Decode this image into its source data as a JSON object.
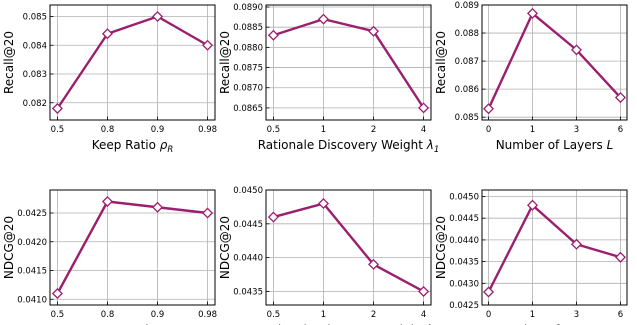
{
  "figure": {
    "line_color": "#9b1f6e",
    "grid_color": "#b0b0b0",
    "marker": "diamond-open"
  },
  "chart_data": [
    {
      "type": "line",
      "xlabel": "Keep Ratio ρ_R",
      "xlabel_main": "Keep Ratio ",
      "xlabel_sym": "ρ",
      "xlabel_sub": "R",
      "ylabel": "Recall@20",
      "categories": [
        "0.5",
        "0.8",
        "0.9",
        "0.98"
      ],
      "values": [
        0.0818,
        0.0844,
        0.085,
        0.084
      ],
      "ylim": [
        0.0814,
        0.0854
      ],
      "yticks": [
        "0.082",
        "0.083",
        "0.084",
        "0.085"
      ],
      "grid": true
    },
    {
      "type": "line",
      "xlabel": "Rationale Discovery Weight λ_1",
      "xlabel_main": "Rationale Discovery Weight ",
      "xlabel_sym": "λ",
      "xlabel_sub": "1",
      "ylabel": "Recall@20",
      "categories": [
        "0.5",
        "1",
        "2",
        "4"
      ],
      "values": [
        0.0883,
        0.0887,
        0.0884,
        0.0865
      ],
      "ylim": [
        0.0862,
        0.08905
      ],
      "yticks": [
        "0.0865",
        "0.0870",
        "0.0875",
        "0.0880",
        "0.0885",
        "0.0890"
      ],
      "grid": true
    },
    {
      "type": "line",
      "xlabel": "Number of Layers L",
      "xlabel_main": "Number of Layers ",
      "xlabel_sym": "L",
      "xlabel_sub": "",
      "ylabel": "Recall@20",
      "categories": [
        "0",
        "1",
        "3",
        "6"
      ],
      "values": [
        0.0853,
        0.0887,
        0.0874,
        0.0857
      ],
      "ylim": [
        0.0849,
        0.089
      ],
      "yticks": [
        "0.085",
        "0.086",
        "0.087",
        "0.088",
        "0.089"
      ],
      "grid": true
    },
    {
      "type": "line",
      "xlabel": "Keep Ratio ρ_R",
      "xlabel_main": "Keep Ratio ",
      "xlabel_sym": "ρ",
      "xlabel_sub": "R",
      "ylabel": "NDCG@20",
      "categories": [
        "0.5",
        "0.8",
        "0.9",
        "0.98"
      ],
      "values": [
        0.0411,
        0.0427,
        0.0426,
        0.0425
      ],
      "ylim": [
        0.0409,
        0.0429
      ],
      "yticks": [
        "0.0410",
        "0.0415",
        "0.0420",
        "0.0425"
      ],
      "grid": true
    },
    {
      "type": "line",
      "xlabel": "Rationale Discovery Weight λ_1",
      "xlabel_main": "Rationale Discovery Weight ",
      "xlabel_sym": "λ",
      "xlabel_sub": "1",
      "ylabel": "NDCG@20",
      "categories": [
        "0.5",
        "1",
        "2",
        "4"
      ],
      "values": [
        0.0446,
        0.0448,
        0.0439,
        0.0435
      ],
      "ylim": [
        0.0433,
        0.045
      ],
      "yticks": [
        "0.0435",
        "0.0440",
        "0.0445",
        "0.0450"
      ],
      "grid": true
    },
    {
      "type": "line",
      "xlabel": "Number of Layers L",
      "xlabel_main": "Number of Layers ",
      "xlabel_sym": "L",
      "xlabel_sub": "",
      "ylabel": "NDCG@20",
      "categories": [
        "0",
        "1",
        "3",
        "6"
      ],
      "values": [
        0.0428,
        0.0448,
        0.0439,
        0.0436
      ],
      "ylim": [
        0.0425,
        0.04515
      ],
      "yticks": [
        "0.0425",
        "0.0430",
        "0.0435",
        "0.0440",
        "0.0445",
        "0.0450"
      ],
      "grid": true
    }
  ]
}
